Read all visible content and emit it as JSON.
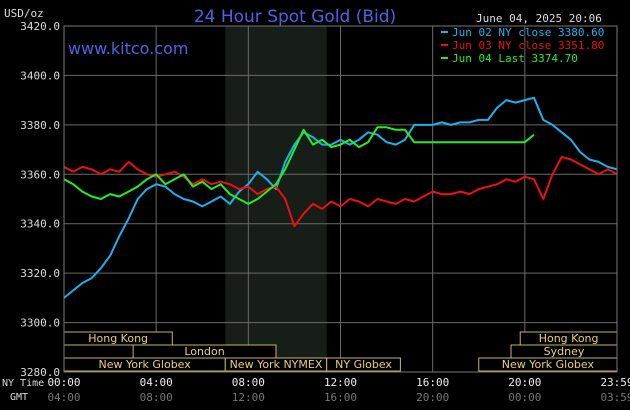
{
  "chart_data": {
    "type": "line",
    "title": "24 Hour Spot Gold (Bid)",
    "site": "www.kitco.com",
    "ylabel": "USD/oz",
    "date": "June 04, 2025 20:06",
    "ylim": [
      3280,
      3420
    ],
    "yticks": [
      "3420.0",
      "3400.0",
      "3380.0",
      "3360.0",
      "3340.0",
      "3320.0",
      "3300.0",
      "3280.0"
    ],
    "ytick_values": [
      3420,
      3400,
      3380,
      3360,
      3340,
      3320,
      3300,
      3280
    ],
    "xlim": [
      0,
      24
    ],
    "xticks_ny": [
      "00:00",
      "04:00",
      "08:00",
      "12:00",
      "16:00",
      "20:00",
      "23:59"
    ],
    "xticks_gmt": [
      "04:00",
      "08:00",
      "12:00",
      "16:00",
      "20:00",
      "00:00",
      "03:59"
    ],
    "xtick_hours": [
      0,
      4,
      8,
      12,
      16,
      20,
      24
    ],
    "x_axis_label_ny": "NY Time",
    "x_axis_label_gmt": "GMT",
    "shaded_hours": [
      7,
      11.4
    ],
    "grid": true,
    "legend_position": "top-right",
    "series": [
      {
        "name": "Jun 02 NY close 3380.60",
        "color": "#1bb1ef",
        "x": [
          0,
          0.4,
          0.8,
          1.2,
          1.6,
          2.0,
          2.4,
          2.8,
          3.2,
          3.6,
          4.0,
          4.4,
          4.8,
          5.2,
          5.6,
          6.0,
          6.4,
          6.8,
          7.2,
          7.6,
          8.0,
          8.4,
          8.8,
          9.2,
          9.6,
          10.0,
          10.4,
          10.8,
          11.2,
          11.6,
          12.0,
          12.4,
          12.8,
          13.2,
          13.6,
          14.0,
          14.4,
          14.8,
          15.2,
          15.6,
          16.0,
          16.4,
          16.8,
          17.2,
          17.6,
          18.0,
          18.4,
          18.8,
          19.2,
          19.6,
          20.0,
          20.4,
          20.8,
          21.2,
          21.6,
          22.0,
          22.4,
          22.8,
          23.2,
          23.6,
          24.0
        ],
        "y": [
          3310,
          3313,
          3316,
          3318,
          3322,
          3327,
          3335,
          3342,
          3350,
          3354,
          3356,
          3355,
          3352,
          3350,
          3349,
          3347,
          3349,
          3351,
          3348,
          3353,
          3356,
          3361,
          3358,
          3354,
          3365,
          3372,
          3377,
          3375,
          3372,
          3372,
          3374,
          3372,
          3374,
          3377,
          3376,
          3373,
          3372,
          3374,
          3380,
          3380,
          3380,
          3381,
          3380,
          3381,
          3381,
          3382,
          3382,
          3387,
          3390,
          3389,
          3390,
          3391,
          3382,
          3380,
          3377,
          3374,
          3369,
          3366,
          3365,
          3363,
          3362
        ]
      },
      {
        "name": "Jun 03 NY close 3351.80",
        "color": "#ee1010",
        "x": [
          0,
          0.4,
          0.8,
          1.2,
          1.6,
          2.0,
          2.4,
          2.8,
          3.2,
          3.6,
          4.0,
          4.4,
          4.8,
          5.2,
          5.6,
          6.0,
          6.4,
          6.8,
          7.2,
          7.6,
          8.0,
          8.4,
          8.8,
          9.2,
          9.6,
          10.0,
          10.4,
          10.8,
          11.2,
          11.6,
          12.0,
          12.4,
          12.8,
          13.2,
          13.6,
          14.0,
          14.4,
          14.8,
          15.2,
          15.6,
          16.0,
          16.4,
          16.8,
          17.2,
          17.6,
          18.0,
          18.4,
          18.8,
          19.2,
          19.6,
          20.0,
          20.4,
          20.8,
          21.2,
          21.6,
          22.0,
          22.4,
          22.8,
          23.2,
          23.6,
          24.0
        ],
        "y": [
          3363,
          3361,
          3363,
          3362,
          3360,
          3362,
          3361,
          3365,
          3362,
          3360,
          3359,
          3360,
          3361,
          3359,
          3356,
          3358,
          3356,
          3357,
          3356,
          3354,
          3355,
          3352,
          3354,
          3355,
          3350,
          3339,
          3344,
          3348,
          3346,
          3349,
          3347,
          3350,
          3349,
          3347,
          3350,
          3349,
          3348,
          3350,
          3349,
          3351,
          3353,
          3352,
          3352,
          3353,
          3352,
          3354,
          3355,
          3356,
          3358,
          3357,
          3359,
          3358,
          3350,
          3360,
          3367,
          3366,
          3364,
          3362,
          3360,
          3362,
          3360
        ]
      },
      {
        "name": "Jun 04 Last 3374.70",
        "color": "#22ee22",
        "x": [
          0,
          0.4,
          0.8,
          1.2,
          1.6,
          2.0,
          2.4,
          2.8,
          3.2,
          3.6,
          4.0,
          4.4,
          4.8,
          5.2,
          5.6,
          6.0,
          6.4,
          6.8,
          7.2,
          7.6,
          8.0,
          8.4,
          8.8,
          9.2,
          9.6,
          10.0,
          10.4,
          10.8,
          11.2,
          11.6,
          12.0,
          12.4,
          12.8,
          13.2,
          13.6,
          14.0,
          14.4,
          14.8,
          15.2,
          15.6,
          16.0,
          16.4,
          16.8,
          17.2,
          17.6,
          18.0,
          18.4,
          18.8,
          19.2,
          19.6,
          20.0,
          20.4
        ],
        "y": [
          3358,
          3356,
          3353,
          3351,
          3350,
          3352,
          3351,
          3353,
          3355,
          3358,
          3360,
          3356,
          3358,
          3360,
          3355,
          3357,
          3354,
          3356,
          3352,
          3350,
          3348,
          3350,
          3353,
          3356,
          3362,
          3370,
          3378,
          3372,
          3374,
          3371,
          3372,
          3374,
          3371,
          3373,
          3379,
          3379,
          3378,
          3378,
          3373,
          3373,
          3373,
          3373,
          3373,
          3373,
          3373,
          3373,
          3373,
          3373,
          3373,
          3373,
          3373,
          3376
        ]
      }
    ],
    "sessions": [
      {
        "label": "Hong Kong",
        "row": 0,
        "start": 0,
        "end": 4.7
      },
      {
        "label": "Hong Kong",
        "row": 0,
        "start": 19.8,
        "end": 24
      },
      {
        "label": "London",
        "row": 1,
        "start": 3,
        "end": 9.2
      },
      {
        "label": "Sydney",
        "row": 1,
        "start": 19.4,
        "end": 24
      },
      {
        "label": "New York Globex",
        "row": 2,
        "start": 0,
        "end": 7
      },
      {
        "label": "New York NYMEX",
        "row": 2,
        "start": 7,
        "end": 11.4
      },
      {
        "label": "NY Globex",
        "row": 2,
        "start": 11.4,
        "end": 14.6
      },
      {
        "label": "New York Globex",
        "row": 2,
        "start": 18,
        "end": 24
      }
    ]
  }
}
